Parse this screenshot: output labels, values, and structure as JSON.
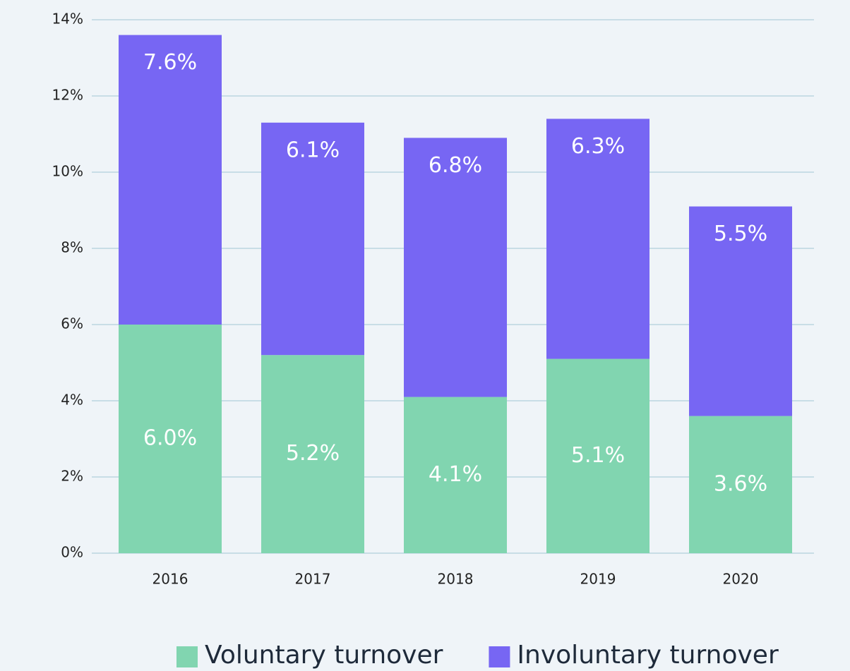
{
  "chart_data": {
    "type": "stacked_bar",
    "categories": [
      "2016",
      "2017",
      "2018",
      "2019",
      "2020"
    ],
    "series": [
      {
        "name": "Voluntary turnover",
        "color": "#81d5b0",
        "values": [
          6.0,
          5.2,
          4.1,
          5.1,
          3.6
        ],
        "value_labels": [
          "6.0%",
          "5.2%",
          "4.1%",
          "5.1%",
          "3.6%"
        ]
      },
      {
        "name": "Involuntary turnover",
        "color": "#7766f3",
        "values": [
          7.6,
          6.1,
          6.8,
          6.3,
          5.5
        ],
        "value_labels": [
          "7.6%",
          "6.1%",
          "6.8%",
          "6.3%",
          "5.5%"
        ]
      }
    ],
    "ylim": [
      0,
      14
    ],
    "yticks": [
      {
        "value": 0,
        "label": "0%"
      },
      {
        "value": 2,
        "label": "2%"
      },
      {
        "value": 4,
        "label": "4%"
      },
      {
        "value": 6,
        "label": "6%"
      },
      {
        "value": 8,
        "label": "8%"
      },
      {
        "value": 10,
        "label": "10%"
      },
      {
        "value": 12,
        "label": "12%"
      },
      {
        "value": 14,
        "label": "14%"
      }
    ],
    "grid": true,
    "legend": "bottom"
  }
}
